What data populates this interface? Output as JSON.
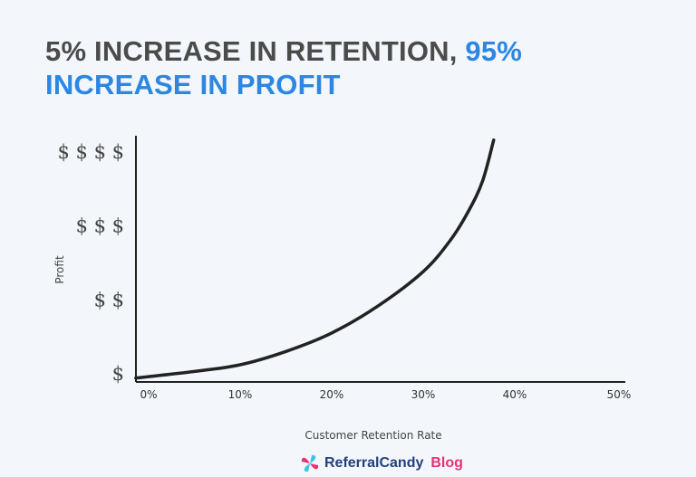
{
  "title": {
    "part1": "5% INCREASE IN RETENTION, ",
    "part2": "95%",
    "part3": "INCREASE IN PROFIT"
  },
  "colors": {
    "background": "#f3f6fa",
    "title_dark": "#4b4b4b",
    "title_accent": "#2b87e3",
    "curve": "#222222",
    "brand_blue": "#24407d",
    "brand_pink": "#e8317a"
  },
  "chart_data": {
    "type": "line",
    "title": "5% INCREASE IN RETENTION, 95% INCREASE IN PROFIT",
    "xlabel": "Customer Retention Rate",
    "ylabel": "Profit",
    "xticks": [
      0,
      10,
      20,
      30,
      40,
      50
    ],
    "xtick_labels": [
      "0%",
      "10%",
      "20%",
      "30%",
      "40%",
      "50%"
    ],
    "yticks": [
      1,
      2,
      3,
      4
    ],
    "ytick_labels": [
      "$",
      "$ $",
      "$ $ $",
      "$ $ $ $"
    ],
    "xlim": [
      -1.4,
      52
    ],
    "ylim": [
      0.9,
      4.2
    ],
    "grid": false,
    "series": [
      {
        "x": [
          -1.4,
          0,
          5,
          10,
          15,
          20,
          25,
          30,
          33,
          35,
          36.5,
          37.7
        ],
        "y": [
          0.93,
          0.95,
          1.02,
          1.11,
          1.29,
          1.54,
          1.9,
          2.37,
          2.8,
          3.2,
          3.6,
          4.15
        ]
      }
    ]
  },
  "brand": {
    "name": "ReferralCandy",
    "suffix": "Blog"
  }
}
